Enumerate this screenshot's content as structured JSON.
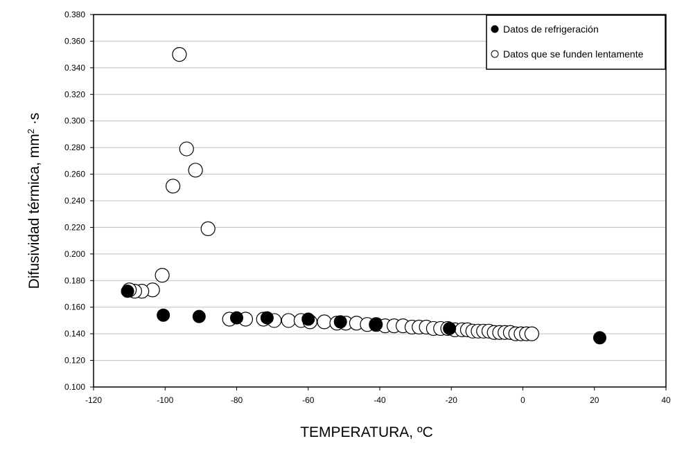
{
  "chart_data": {
    "type": "scatter",
    "title": "",
    "xlabel": "TEMPERATURA, ºC",
    "ylabel_main": "Difusividad térmica, mm",
    "ylabel_sup": "2",
    "ylabel_tail": " ·s",
    "xlim": [
      -120,
      40
    ],
    "ylim": [
      0.1,
      0.38
    ],
    "x_ticks": [
      "-120",
      "-100",
      "-80",
      "-60",
      "-40",
      "-20",
      "0",
      "20",
      "40"
    ],
    "y_ticks": [
      "0.100",
      "0.120",
      "0.140",
      "0.160",
      "0.180",
      "0.200",
      "0.220",
      "0.240",
      "0.260",
      "0.280",
      "0.300",
      "0.320",
      "0.340",
      "0.360",
      "0.380"
    ],
    "grid": "horizontal",
    "legend_position": "top-right",
    "series": [
      {
        "name": "Datos que se funden lentamente",
        "marker": "open-circle",
        "x": [
          -96.0,
          -94.0,
          -91.5,
          -97.8,
          -88.0,
          -100.8,
          -103.5,
          -106.5,
          -108.5,
          -110.0,
          -82.0,
          -77.5,
          -72.5,
          -69.5,
          -65.5,
          -62.0,
          -59.5,
          -55.5,
          -52.0,
          -49.5,
          -46.5,
          -43.5,
          -41.0,
          -38.5,
          -36.0,
          -33.5,
          -31.0,
          -29.0,
          -27.0,
          -25.0,
          -23.0,
          -21.0,
          -19.0,
          -17.0,
          -15.5,
          -14.0,
          -12.5,
          -11.0,
          -9.5,
          -8.0,
          -6.5,
          -5.0,
          -3.5,
          -2.0,
          -0.5,
          1.0,
          2.5
        ],
        "y": [
          0.35,
          0.279,
          0.263,
          0.251,
          0.219,
          0.184,
          0.173,
          0.172,
          0.172,
          0.173,
          0.151,
          0.151,
          0.151,
          0.15,
          0.15,
          0.15,
          0.149,
          0.149,
          0.148,
          0.148,
          0.148,
          0.147,
          0.147,
          0.146,
          0.146,
          0.146,
          0.145,
          0.145,
          0.145,
          0.144,
          0.144,
          0.144,
          0.143,
          0.143,
          0.143,
          0.142,
          0.142,
          0.142,
          0.142,
          0.141,
          0.141,
          0.141,
          0.141,
          0.14,
          0.14,
          0.14,
          0.14
        ]
      },
      {
        "name": "Datos de refrigeración",
        "marker": "filled-circle",
        "x": [
          -110.5,
          -100.5,
          -90.5,
          -80.0,
          -71.5,
          -60.0,
          -51.0,
          -41.0,
          -20.5,
          21.5
        ],
        "y": [
          0.172,
          0.154,
          0.153,
          0.152,
          0.152,
          0.151,
          0.149,
          0.147,
          0.144,
          0.137
        ]
      }
    ]
  },
  "legend": {
    "items": [
      {
        "label": "Datos de refrigeración",
        "marker": "filled-circle"
      },
      {
        "label": "Datos que se funden lentamente",
        "marker": "open-circle"
      }
    ]
  },
  "colors": {
    "marker_fill": "#000000",
    "marker_stroke": "#000000",
    "open_fill": "#ffffff",
    "grid": "#bfbfbf",
    "axis": "#000000"
  }
}
